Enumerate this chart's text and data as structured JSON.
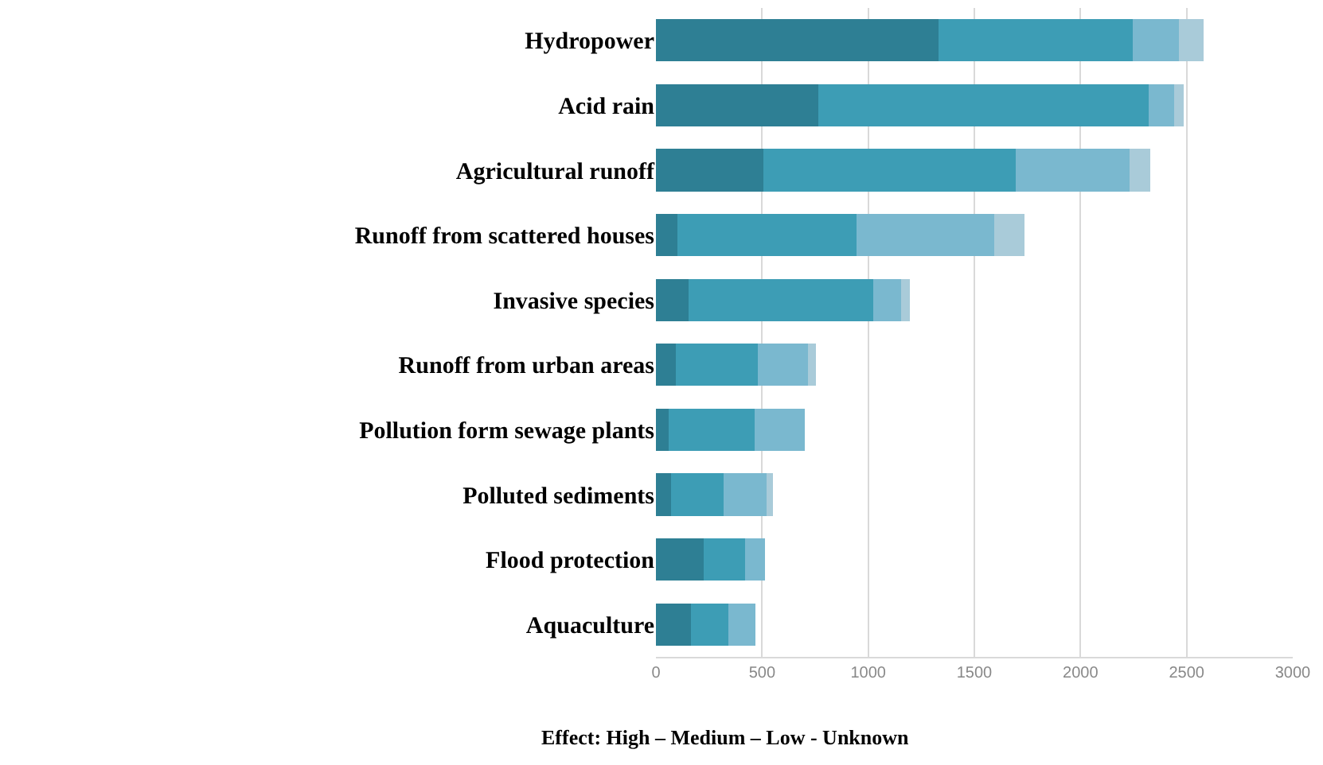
{
  "chart_data": {
    "type": "bar",
    "orientation": "horizontal",
    "stacked": true,
    "xlabel": "Effect: High – Medium – Low - Unknown",
    "categories": [
      "Hydropower",
      "Acid rain",
      "Agricultural runoff",
      "Runoff from scattered houses",
      "Invasive species",
      "Runoff from urban areas",
      "Pollution form sewage plants",
      "Polluted sediments",
      "Flood protection",
      "Aquaculture"
    ],
    "series": [
      {
        "color": "#2e7f94",
        "values": [
          1330,
          765,
          505,
          100,
          155,
          95,
          60,
          70,
          225,
          165
        ]
      },
      {
        "color": "#3d9db5",
        "values": [
          915,
          1555,
          1190,
          845,
          870,
          385,
          405,
          250,
          195,
          175
        ]
      },
      {
        "color": "#7ab8cf",
        "values": [
          220,
          120,
          535,
          650,
          130,
          235,
          235,
          200,
          95,
          130
        ]
      },
      {
        "color": "#a9cbd9",
        "values": [
          115,
          45,
          100,
          140,
          40,
          40,
          0,
          30,
          0,
          0
        ]
      }
    ],
    "xlim": [
      0,
      3000
    ],
    "xticks": [
      0,
      500,
      1000,
      1500,
      2000,
      2500,
      3000
    ],
    "grid": "x"
  }
}
